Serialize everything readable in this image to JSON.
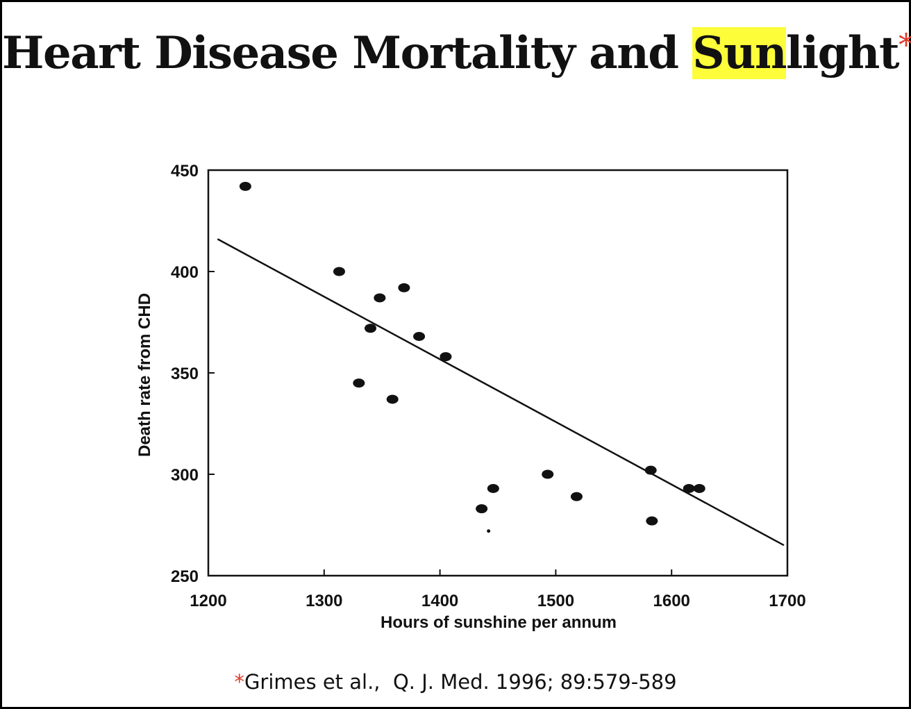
{
  "title": {
    "part1": "Heart Disease Mortality and ",
    "highlight": "Sun",
    "part2": "light",
    "asterisk": "*"
  },
  "citation": {
    "asterisk": "*",
    "text": "Grimes et al.,  Q. J. Med. 1996; 89:579-589"
  },
  "colors": {
    "highlight": "#fdfd3a",
    "asterisk": "#e03a2a",
    "ink": "#111111"
  },
  "chart_data": {
    "type": "scatter",
    "title": "",
    "xlabel": "Hours of sunshine per annum",
    "ylabel": "Death rate from CHD",
    "xlim": [
      1200,
      1700
    ],
    "ylim": [
      250,
      450
    ],
    "xticks": [
      1200,
      1300,
      1400,
      1500,
      1600,
      1700
    ],
    "yticks": [
      250,
      300,
      350,
      400,
      450
    ],
    "grid": false,
    "points": [
      {
        "x": 1232,
        "y": 442
      },
      {
        "x": 1313,
        "y": 400
      },
      {
        "x": 1340,
        "y": 372
      },
      {
        "x": 1348,
        "y": 387
      },
      {
        "x": 1369,
        "y": 392
      },
      {
        "x": 1330,
        "y": 345
      },
      {
        "x": 1359,
        "y": 337
      },
      {
        "x": 1382,
        "y": 368
      },
      {
        "x": 1405,
        "y": 358
      },
      {
        "x": 1436,
        "y": 283
      },
      {
        "x": 1446,
        "y": 293
      },
      {
        "x": 1493,
        "y": 300
      },
      {
        "x": 1518,
        "y": 289
      },
      {
        "x": 1582,
        "y": 302
      },
      {
        "x": 1583,
        "y": 277
      },
      {
        "x": 1615,
        "y": 293
      },
      {
        "x": 1624,
        "y": 293
      },
      {
        "x": 1442,
        "y": 272,
        "small": true
      }
    ],
    "trendline": {
      "x": [
        1208,
        1697
      ],
      "y": [
        416,
        265
      ]
    }
  }
}
